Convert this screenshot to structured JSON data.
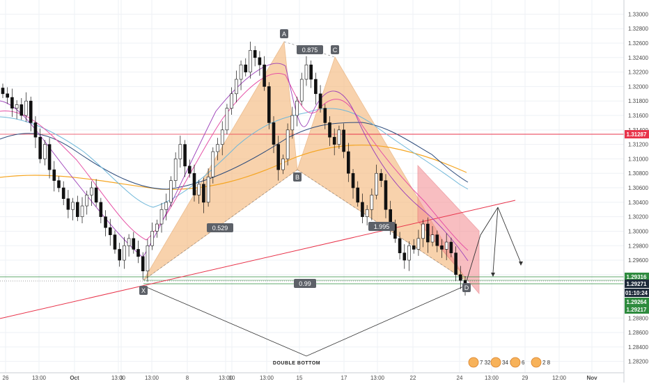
{
  "chart_data": {
    "type": "candlestick",
    "instrument_price_scale": {
      "ylim": [
        1.281,
        1.331
      ],
      "ticks": [
        "1.33000",
        "1.32800",
        "1.32600",
        "1.32400",
        "1.32200",
        "1.32000",
        "1.31800",
        "1.31600",
        "1.31400",
        "1.31200",
        "1.31000",
        "1.30800",
        "1.30600",
        "1.30400",
        "1.30200",
        "1.30000",
        "1.29800",
        "1.29600",
        "1.29400",
        "1.28800",
        "1.28600",
        "1.28400",
        "1.28200"
      ]
    },
    "x_ticks": [
      "26",
      "13:00",
      "Oct",
      "13:00",
      "3",
      "13:00",
      "8",
      "13:00",
      "10",
      "13:00",
      "15",
      "17",
      "13:00",
      "22",
      "24",
      "13:00",
      "29",
      "12:00",
      "Nov"
    ],
    "price_badges": [
      {
        "label": "1.31287",
        "price": 1.31287,
        "color": "#e8334a"
      },
      {
        "label": "1.29316",
        "price": 1.29316,
        "color": "#2e8b3e"
      },
      {
        "label": "1.29271",
        "price": 1.29271,
        "color": "#1e2a3a"
      },
      {
        "label": "01:10:24",
        "price": 1.2916,
        "color": "#1e2a3a"
      },
      {
        "label": "1.29264",
        "price": 1.29085,
        "color": "#2e8b3e"
      },
      {
        "label": "1.29217",
        "price": 1.2901,
        "color": "#2e8b3e"
      }
    ],
    "pattern_points": [
      {
        "label": "X",
        "x": 206,
        "price": 1.2925
      },
      {
        "label": "A",
        "x": 408,
        "price": 1.326
      },
      {
        "label": "B",
        "x": 427,
        "price": 1.3084
      },
      {
        "label": "C",
        "x": 481,
        "price": 1.3236
      },
      {
        "label": "D",
        "x": 670,
        "price": 1.2928
      }
    ],
    "ratios": [
      {
        "label": "0.875",
        "x": 445,
        "price": 1.3248
      },
      {
        "label": "0.529",
        "x": 316,
        "price": 1.3
      },
      {
        "label": "1.995",
        "x": 548,
        "price": 1.3
      },
      {
        "label": "0.99",
        "x": 438,
        "price": 1.2923
      }
    ],
    "annotation": "DOUBLE BOTTOM",
    "horizontal_levels": [
      1.31287,
      1.29316,
      1.29271,
      1.2923
    ],
    "event_markers": [
      {
        "count": "7",
        "extra": "32"
      },
      {
        "count": "34",
        "extra": "5"
      },
      {
        "count": "6",
        "extra": ""
      },
      {
        "count": "2",
        "extra": "8"
      }
    ],
    "close_series": [
      1.319,
      1.3185,
      1.317,
      1.3175,
      1.316,
      1.318,
      1.315,
      1.313,
      1.31,
      1.312,
      1.3085,
      1.307,
      1.306,
      1.3045,
      1.303,
      1.304,
      1.302,
      1.3035,
      1.305,
      1.306,
      1.304,
      1.302,
      1.3005,
      1.2995,
      1.2975,
      1.296,
      1.298,
      1.299,
      1.2975,
      1.2965,
      1.2945,
      1.298,
      1.3,
      1.301,
      1.303,
      1.304,
      1.307,
      1.31,
      1.312,
      1.309,
      1.308,
      1.305,
      1.3065,
      1.304,
      1.3075,
      1.311,
      1.312,
      1.314,
      1.317,
      1.319,
      1.321,
      1.323,
      1.322,
      1.325,
      1.324,
      1.323,
      1.32,
      1.315,
      1.312,
      1.3085,
      1.31,
      1.314,
      1.316,
      1.318,
      1.321,
      1.323,
      1.321,
      1.319,
      1.317,
      1.315,
      1.313,
      1.312,
      1.314,
      1.311,
      1.308,
      1.306,
      1.304,
      1.302,
      1.303,
      1.305,
      1.308,
      1.307,
      1.303,
      1.301,
      1.299,
      1.297,
      1.296,
      1.298,
      1.2975,
      1.299,
      1.301,
      1.2985,
      1.2995,
      1.298,
      1.2975,
      1.2985,
      1.297,
      1.294,
      1.2932,
      1.2926
    ]
  }
}
